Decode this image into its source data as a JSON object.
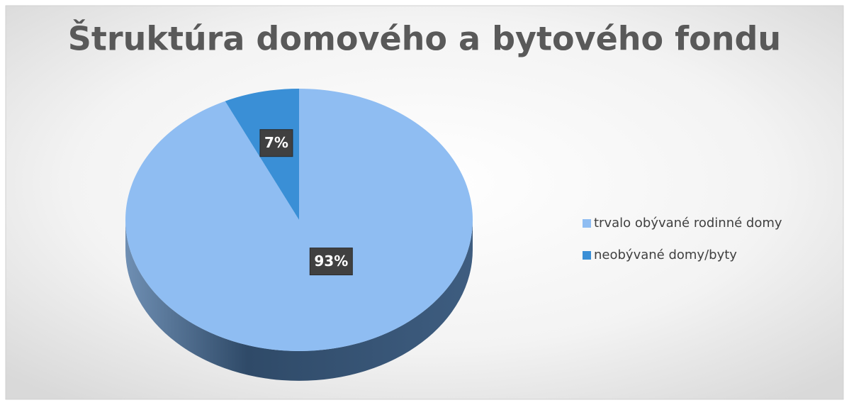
{
  "chart_data": {
    "type": "pie",
    "title": "Štruktúra domového a bytového fondu",
    "categories": [
      "trvalo obývané rodinné domy",
      "neobývané domy/byty"
    ],
    "values": [
      93,
      7
    ],
    "value_labels": [
      "93%",
      "7%"
    ],
    "colors": [
      "#8fbdf2",
      "#3a8fd6"
    ],
    "legend": "right"
  }
}
